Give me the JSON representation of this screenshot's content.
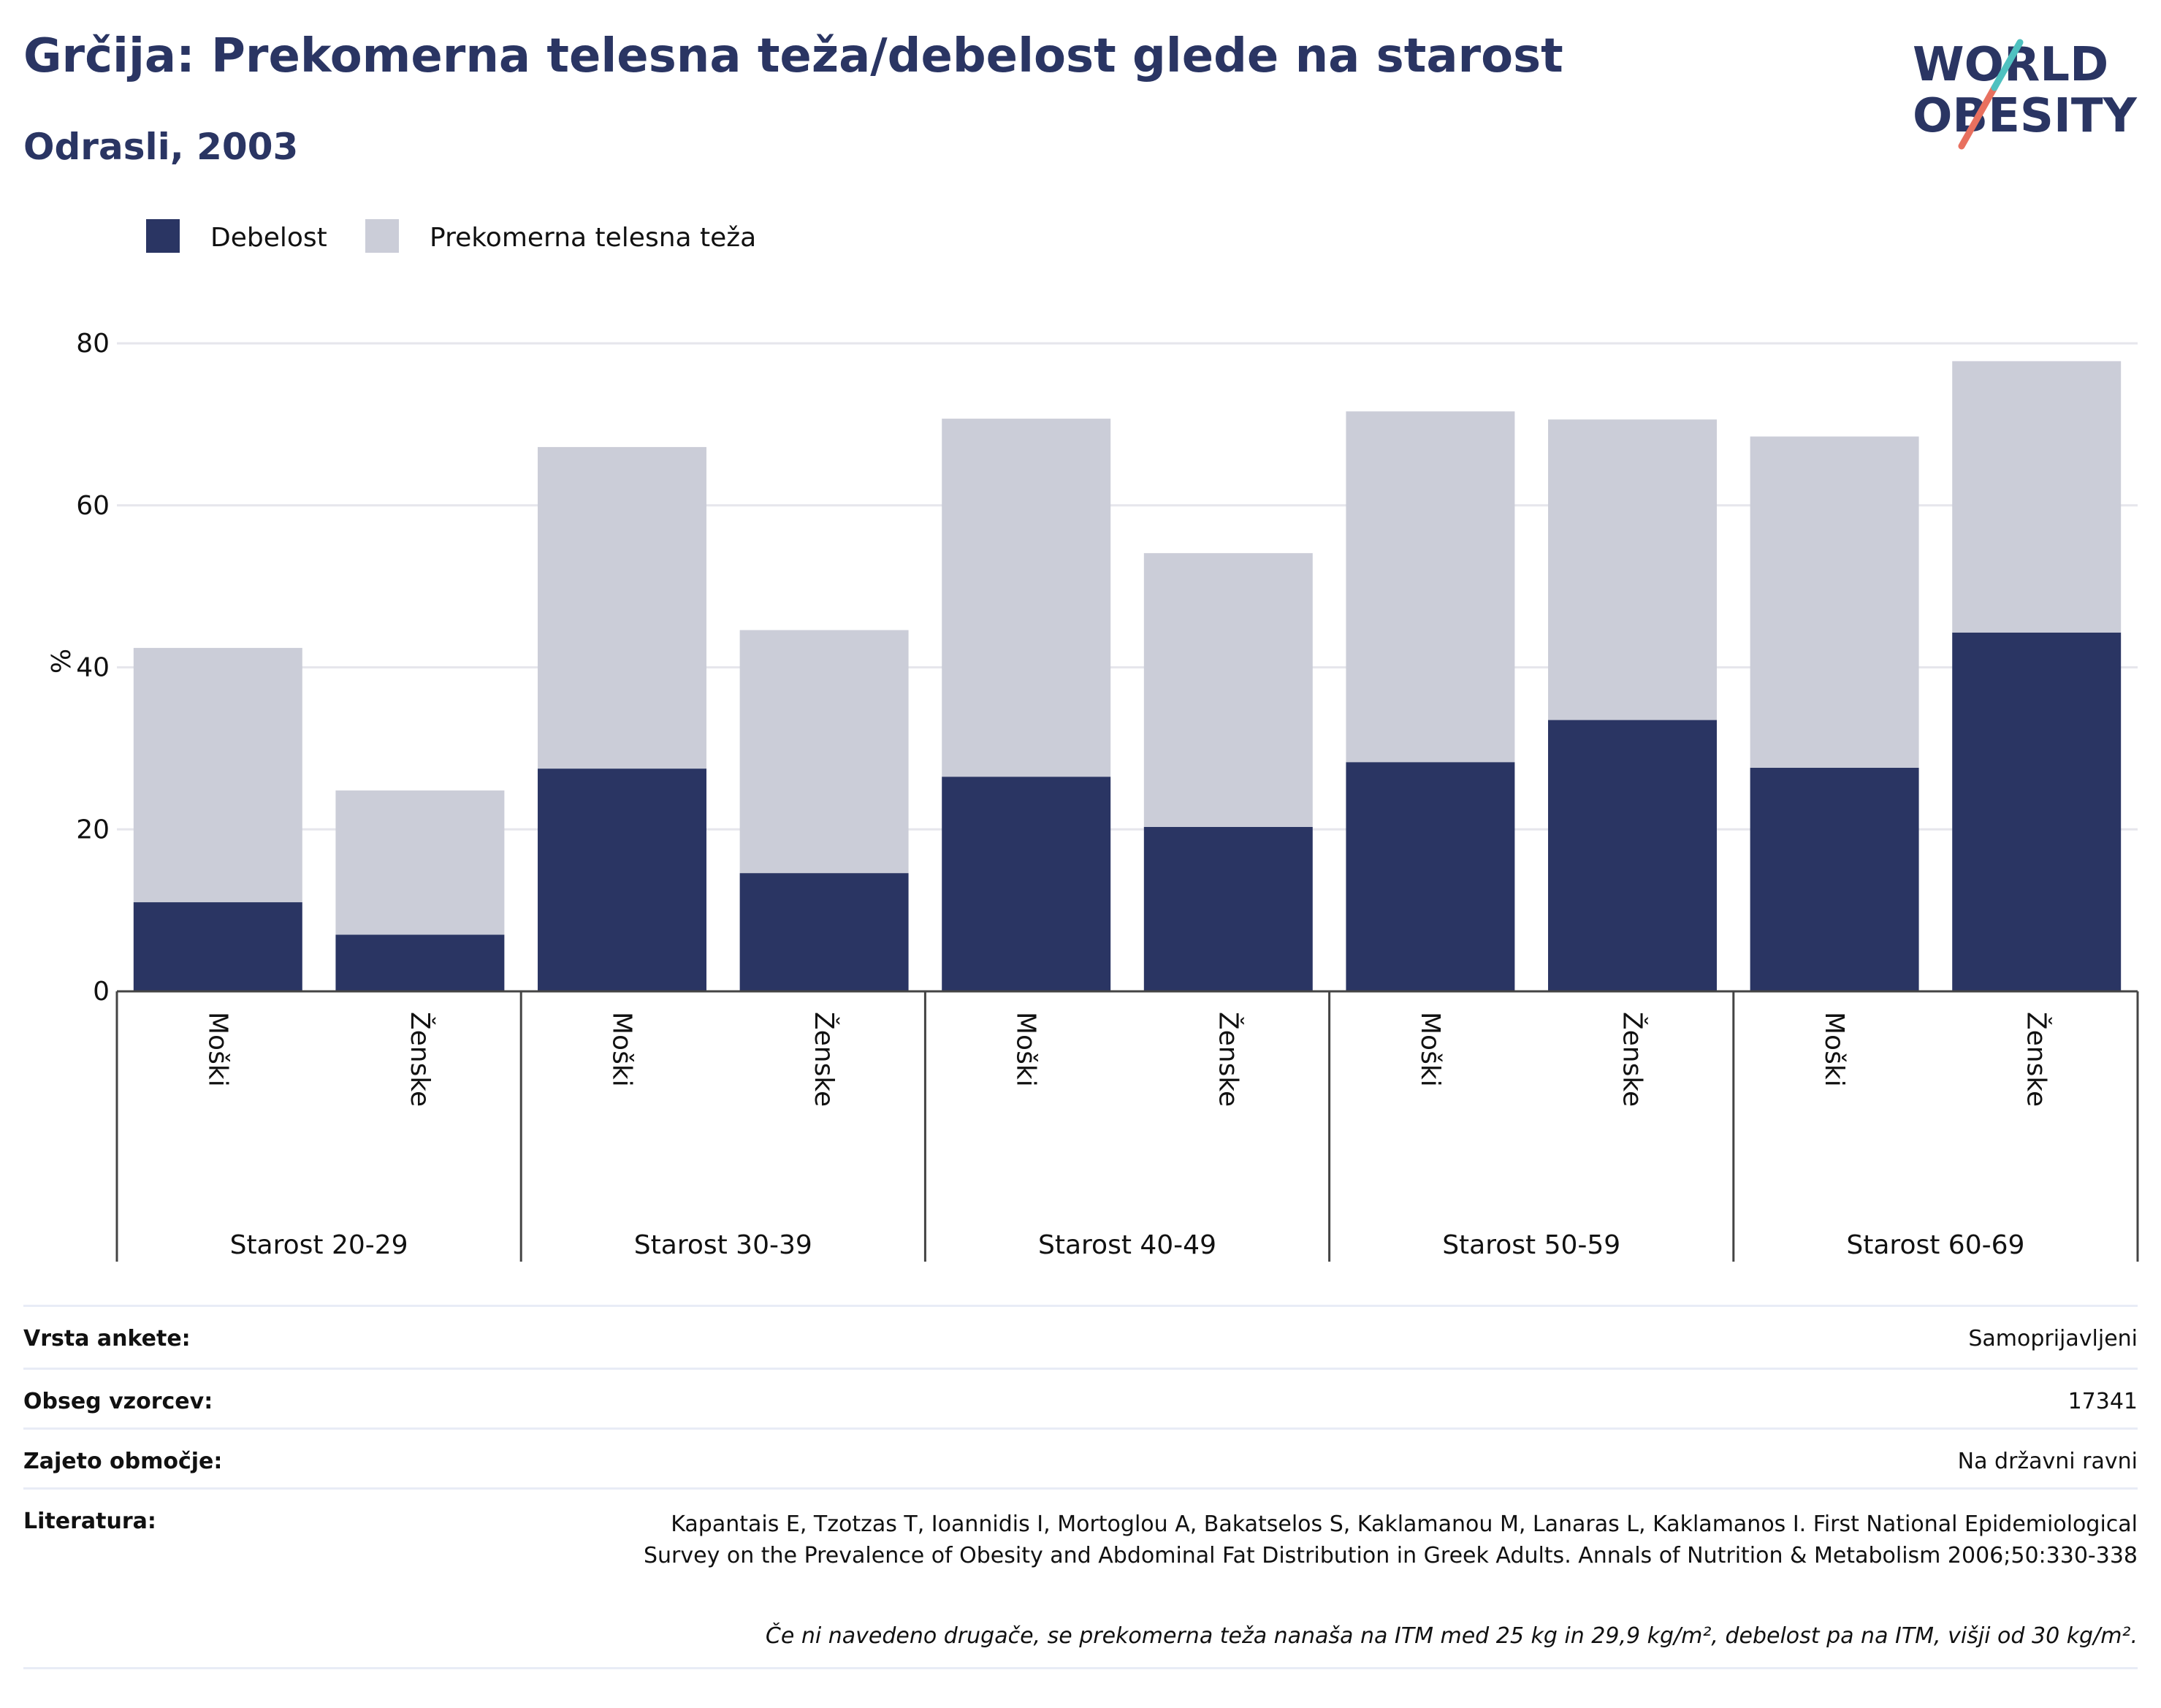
{
  "title": "Grčija: Prekomerna telesna teža/debelost glede na starost",
  "subtitle": "Odrasli, 2003",
  "logo": {
    "line1": "WORLD",
    "line2": "OBESITY"
  },
  "colors": {
    "obesity": "#2a3563",
    "overweight": "#cbcdd8",
    "title": "#2a3563",
    "grid": "#e6e6ec",
    "axis": "#444444"
  },
  "chart_data": {
    "type": "bar",
    "stacked": true,
    "ylabel": "%",
    "ylim": [
      0,
      80
    ],
    "yticks": [
      0,
      20,
      40,
      60,
      80
    ],
    "grid": true,
    "legend_position": "top-left",
    "groups": [
      "Starost 20-29",
      "Starost 30-39",
      "Starost 40-49",
      "Starost 50-59",
      "Starost 60-69"
    ],
    "categories": [
      "Moški",
      "Ženske",
      "Moški",
      "Ženske",
      "Moški",
      "Ženske",
      "Moški",
      "Ženske",
      "Moški",
      "Ženske"
    ],
    "series": [
      {
        "name": "Debelost",
        "values": [
          11.0,
          7.0,
          27.5,
          14.6,
          26.5,
          20.3,
          28.3,
          33.5,
          27.6,
          44.3
        ]
      },
      {
        "name": "Prekomerna telesna teža",
        "values": [
          31.4,
          17.8,
          39.7,
          30.0,
          44.2,
          33.8,
          43.3,
          37.1,
          40.9,
          33.5
        ]
      }
    ]
  },
  "meta": [
    {
      "label": "Vrsta ankete:",
      "value": "Samoprijavljeni"
    },
    {
      "label": "Obseg vzorcev:",
      "value": "17341"
    },
    {
      "label": "Zajeto območje:",
      "value": "Na državni ravni"
    },
    {
      "label": "Literatura:",
      "value": "Kapantais E, Tzotzas T, Ioannidis I, Mortoglou A, Bakatselos S, Kaklamanou M, Lanaras L, Kaklamanos I. First National Epidemiological Survey on the Prevalence of Obesity and Abdominal Fat Distribution in Greek Adults. Annals of Nutrition & Metabolism 2006;50:330-338"
    }
  ],
  "note": "Če ni navedeno drugače, se prekomerna teža nanaša na ITM med 25 kg in 29,9 kg/m², debelost pa na ITM, višji od 30 kg/m²."
}
